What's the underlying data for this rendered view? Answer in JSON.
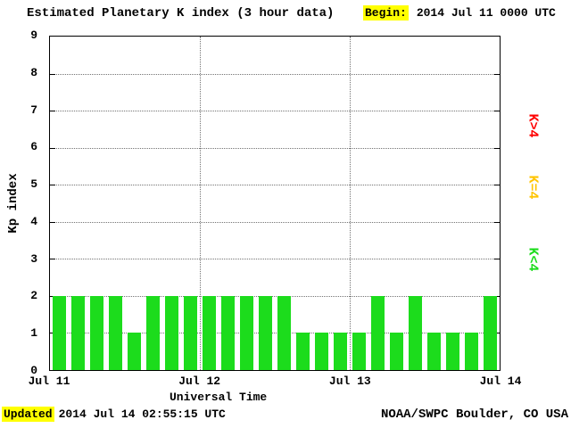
{
  "header": {
    "begin_label": "Begin:",
    "begin_value": "2014 Jul 11 0000 UTC"
  },
  "footer": {
    "updated_label": "Updated",
    "updated_value": "2014 Jul 14 02:55:15 UTC",
    "credit": "NOAA/SWPC Boulder, CO USA"
  },
  "colors": {
    "bar_green": "#1cdc1c",
    "legend_red": "#ff0000",
    "legend_yellow": "#ffc400",
    "legend_green": "#1cdc1c",
    "highlight": "#ffff00",
    "grid": "#737373"
  },
  "chart_data": {
    "type": "bar",
    "title": "Estimated Planetary K index (3 hour data)",
    "xlabel": "Universal Time",
    "ylabel": "Kp index",
    "ylim": [
      0,
      9
    ],
    "y_ticks": [
      "0",
      "1",
      "2",
      "3",
      "4",
      "5",
      "6",
      "7",
      "8",
      "9"
    ],
    "x_tick_labels": [
      "Jul 11",
      "Jul 12",
      "Jul 13",
      "Jul 14"
    ],
    "interval_hours": 3,
    "begin": "2014 Jul 11 0000 UTC",
    "values": [
      2,
      2,
      2,
      2,
      1,
      2,
      2,
      2,
      2,
      2,
      2,
      2,
      2,
      1,
      1,
      1,
      1,
      2,
      1,
      2,
      1,
      1,
      1,
      2
    ],
    "bar_color": "#1cdc1c",
    "grid": "dotted",
    "legend_position": "right-rotated",
    "legend": [
      {
        "label": "K>4",
        "color": "#ff0000"
      },
      {
        "label": "K=4",
        "color": "#ffc400"
      },
      {
        "label": "K<4",
        "color": "#1cdc1c"
      }
    ]
  }
}
